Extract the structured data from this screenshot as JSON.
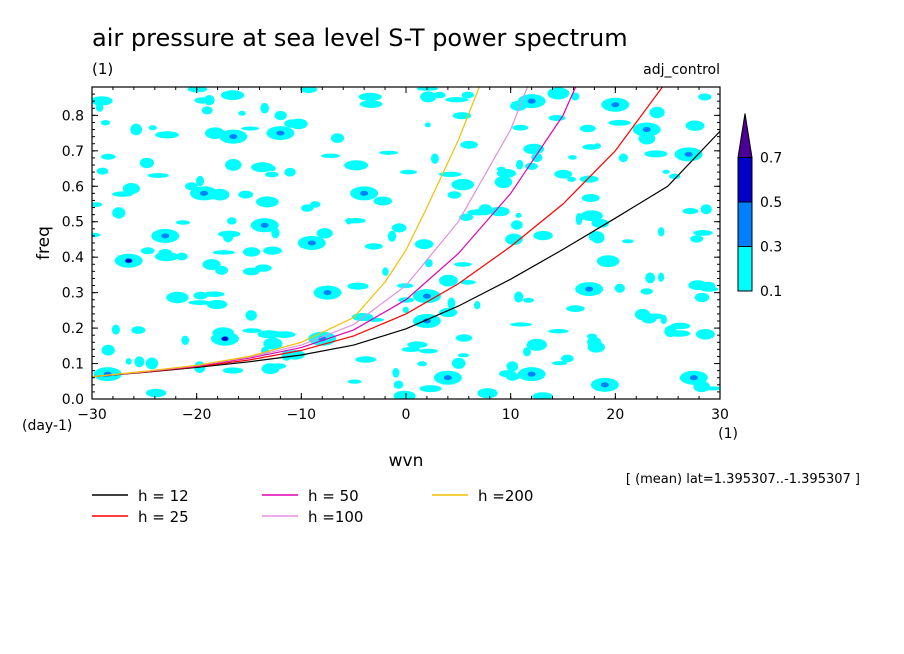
{
  "chart_data": {
    "type": "heatmap",
    "title": "air pressure at sea level S-T power spectrum",
    "subtitle": "(1)",
    "run_label": "adj_control",
    "xlabel": "wvn",
    "ylabel": "freq",
    "x_unit": "(1)",
    "y_unit": "(day-1)",
    "xlim": [
      -30,
      30
    ],
    "ylim": [
      0,
      0.88
    ],
    "x_ticks": [
      -30,
      -20,
      -10,
      0,
      10,
      20,
      30
    ],
    "x_tick_labels": [
      "−30",
      "−20",
      "−10",
      "0",
      "10",
      "20",
      "30"
    ],
    "y_ticks": [
      0,
      0.1,
      0.2,
      0.3,
      0.4,
      0.5,
      0.6,
      0.7,
      0.8
    ],
    "y_tick_labels": [
      "0.0",
      "0.1",
      "0.2",
      "0.3",
      "0.4",
      "0.5",
      "0.6",
      "0.7",
      "0.8"
    ],
    "grid": false,
    "note": "[ (mean) lat=1.395307..-1.395307 ]",
    "colorbar": {
      "levels": [
        0.1,
        0.3,
        0.5,
        0.7
      ],
      "level_labels": [
        "0.1",
        "0.3",
        "0.5",
        "0.7"
      ],
      "colors": [
        "#00ffff",
        "#0080ff",
        "#0000c8",
        "#4b0096"
      ]
    },
    "contour_blobs": [
      {
        "x": -17.3,
        "y": 0.17,
        "level": 2
      },
      {
        "x": -19.3,
        "y": 0.58,
        "level": 1
      },
      {
        "x": -26.5,
        "y": 0.39,
        "level": 2
      },
      {
        "x": -13.5,
        "y": 0.49,
        "level": 1
      },
      {
        "x": -9,
        "y": 0.44,
        "level": 1
      },
      {
        "x": -7.5,
        "y": 0.3,
        "level": 1
      },
      {
        "x": -12,
        "y": 0.75,
        "level": 1
      },
      {
        "x": -16.5,
        "y": 0.74,
        "level": 1
      },
      {
        "x": -4,
        "y": 0.58,
        "level": 1
      },
      {
        "x": 2,
        "y": 0.29,
        "level": 1
      },
      {
        "x": 4,
        "y": 0.06,
        "level": 1
      },
      {
        "x": 12,
        "y": 0.07,
        "level": 1
      },
      {
        "x": 19,
        "y": 0.04,
        "level": 1
      },
      {
        "x": 27.5,
        "y": 0.06,
        "level": 1
      },
      {
        "x": 20,
        "y": 0.83,
        "level": 1
      },
      {
        "x": 23,
        "y": 0.76,
        "level": 1
      },
      {
        "x": 12,
        "y": 0.84,
        "level": 1
      },
      {
        "x": 27,
        "y": 0.69,
        "level": 1
      },
      {
        "x": 17.5,
        "y": 0.31,
        "level": 1
      },
      {
        "x": -23,
        "y": 0.46,
        "level": 1
      },
      {
        "x": -28.5,
        "y": 0.07,
        "level": 1
      },
      {
        "x": -8,
        "y": 0.17,
        "level": 1
      },
      {
        "x": 2,
        "y": 0.22,
        "level": 1
      }
    ],
    "series": [
      {
        "name": "h = 12",
        "color": "#000000",
        "x": [
          -30,
          -25,
          -20,
          -15,
          -10,
          -5,
          0,
          5,
          10,
          15,
          20,
          25,
          30
        ],
        "y": [
          0.063,
          0.075,
          0.089,
          0.105,
          0.124,
          0.152,
          0.198,
          0.262,
          0.338,
          0.422,
          0.51,
          0.6,
          0.755
        ]
      },
      {
        "name": "h = 25",
        "color": "#ff0000",
        "x": [
          -30,
          -25,
          -20,
          -15,
          -10,
          -5,
          0,
          5,
          10,
          15,
          20,
          24.5
        ],
        "y": [
          0.063,
          0.076,
          0.091,
          0.11,
          0.137,
          0.178,
          0.24,
          0.325,
          0.43,
          0.55,
          0.7,
          0.88
        ]
      },
      {
        "name": "h = 50",
        "color": "#e000b0",
        "x": [
          -30,
          -25,
          -20,
          -15,
          -10,
          -5,
          0,
          5,
          10,
          15,
          16.2
        ],
        "y": [
          0.063,
          0.077,
          0.093,
          0.115,
          0.145,
          0.195,
          0.28,
          0.41,
          0.58,
          0.8,
          0.88
        ]
      },
      {
        "name": "h =100",
        "color": "#e090e0",
        "x": [
          -30,
          -25,
          -20,
          -15,
          -10,
          -5,
          0,
          5,
          10,
          11.6
        ],
        "y": [
          0.063,
          0.077,
          0.094,
          0.118,
          0.152,
          0.21,
          0.32,
          0.5,
          0.76,
          0.88
        ]
      },
      {
        "name": "h =200",
        "color": "#f0c000",
        "x": [
          -30,
          -25,
          -20,
          -15,
          -10,
          -5,
          -2,
          0,
          2,
          5,
          7
        ],
        "y": [
          0.063,
          0.078,
          0.095,
          0.12,
          0.16,
          0.23,
          0.33,
          0.42,
          0.54,
          0.73,
          0.88
        ]
      }
    ]
  }
}
